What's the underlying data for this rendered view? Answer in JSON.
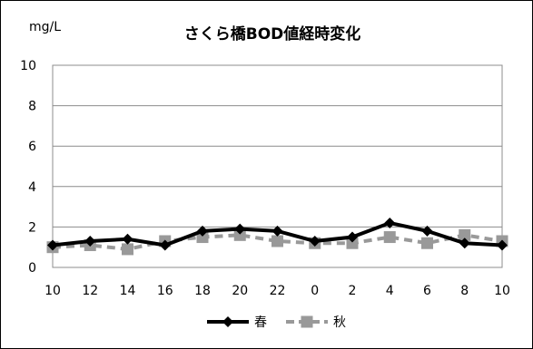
{
  "chart_data": {
    "type": "line",
    "title": "さくら橋BOD値経時変化",
    "ylabel": "mg/L",
    "xlabel": "",
    "categories": [
      "10",
      "12",
      "14",
      "16",
      "18",
      "20",
      "22",
      "0",
      "2",
      "4",
      "6",
      "8",
      "10"
    ],
    "ylim": [
      0,
      10
    ],
    "yticks": [
      "0",
      "2",
      "4",
      "6",
      "8",
      "10"
    ],
    "grid": true,
    "legend_placement": "bottom",
    "series": [
      {
        "name": "春",
        "color": "#000000",
        "marker": "diamond",
        "dash": "solid",
        "values": [
          1.1,
          1.3,
          1.4,
          1.1,
          1.8,
          1.9,
          1.8,
          1.3,
          1.5,
          2.2,
          1.8,
          1.2,
          1.1
        ]
      },
      {
        "name": "秋",
        "color": "#999999",
        "marker": "square",
        "dash": "dashed",
        "values": [
          1.0,
          1.1,
          0.9,
          1.3,
          1.5,
          1.6,
          1.3,
          1.2,
          1.2,
          1.5,
          1.2,
          1.6,
          1.3
        ]
      }
    ]
  }
}
